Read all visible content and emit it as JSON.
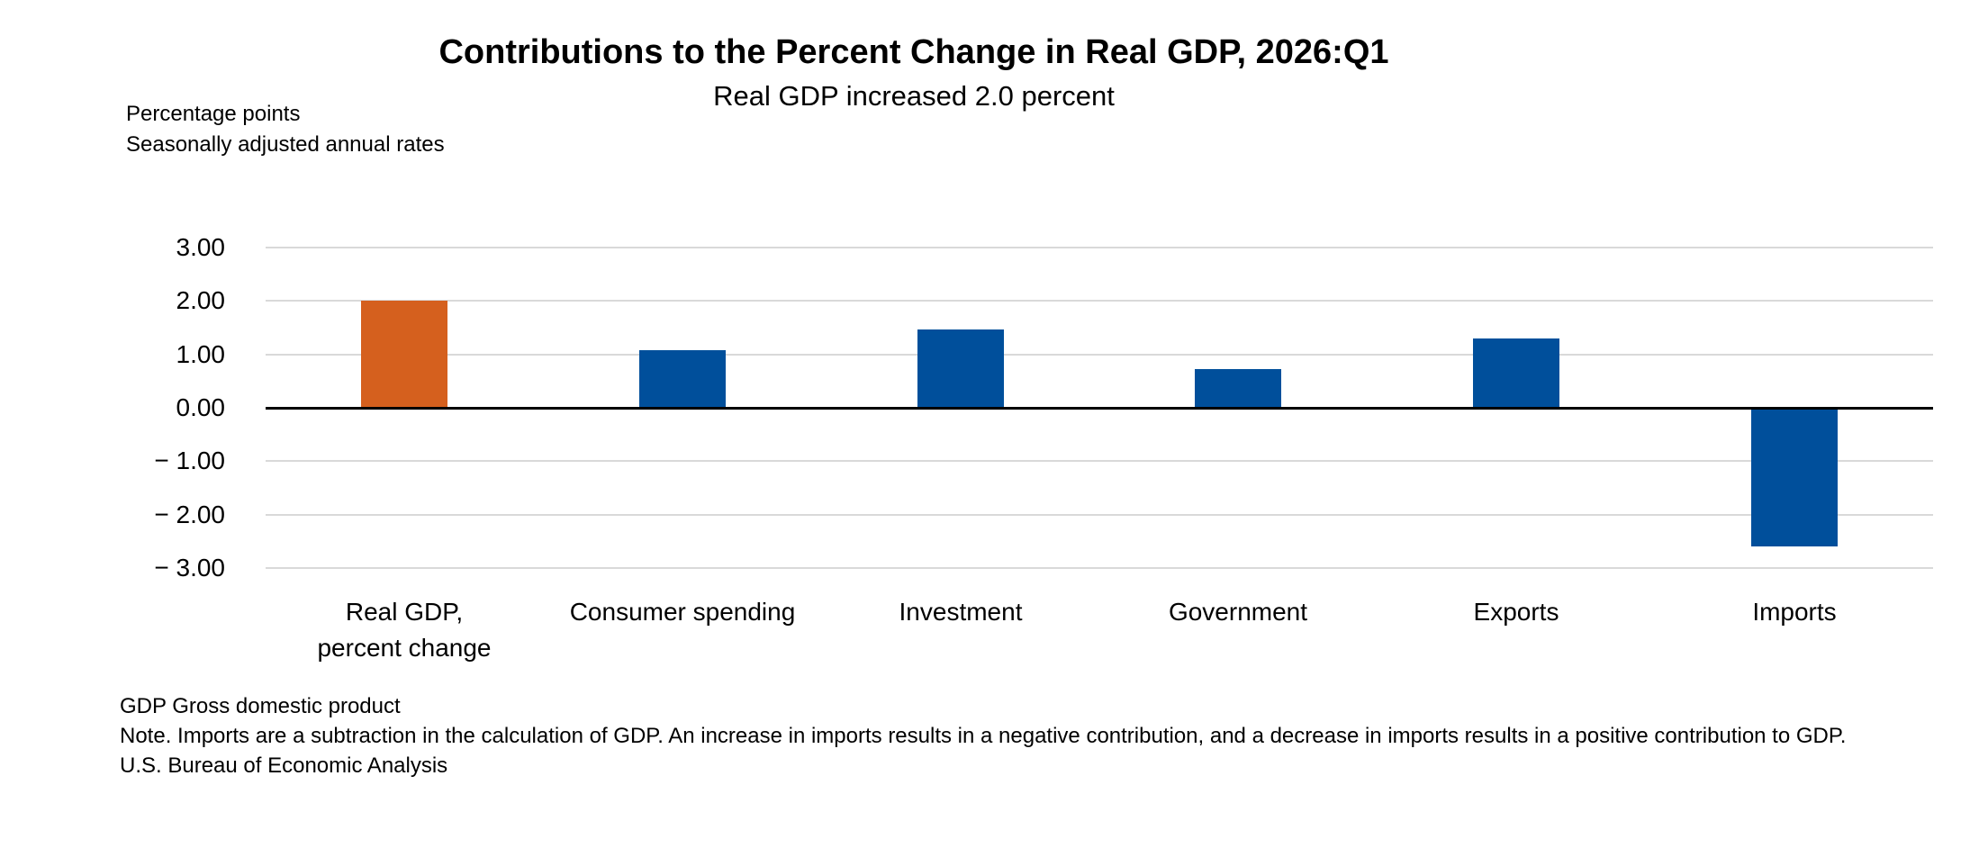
{
  "header": {
    "title": "Contributions to the Percent Change in Real GDP, 2026:Q1",
    "subtitle": "Real GDP increased 2.0 percent",
    "unit_note_line1": "Percentage points",
    "unit_note_line2": "Seasonally adjusted annual rates"
  },
  "chart_data": {
    "type": "bar",
    "title": "Contributions to the Percent Change in Real GDP, 2026:Q1",
    "subtitle": "Real GDP increased 2.0 percent",
    "xlabel": "",
    "ylabel": "Percentage points, seasonally adjusted annual rates",
    "categories": [
      "Real GDP,\npercent change",
      "Consumer spending",
      "Investment",
      "Government",
      "Exports",
      "Imports"
    ],
    "values": [
      2.0,
      1.07,
      1.47,
      0.72,
      1.3,
      -2.6
    ],
    "bar_colors": [
      "#d5601e",
      "#004f9b",
      "#004f9b",
      "#004f9b",
      "#004f9b",
      "#004f9b"
    ],
    "ylim": [
      -3.0,
      3.0
    ],
    "yticks": [
      {
        "value": 3,
        "label": "3.00"
      },
      {
        "value": 2,
        "label": "2.00"
      },
      {
        "value": 1,
        "label": "1.00"
      },
      {
        "value": 0,
        "label": "0.00"
      },
      {
        "value": -1,
        "label": "− 1.00"
      },
      {
        "value": -2,
        "label": "− 2.00"
      },
      {
        "value": -3,
        "label": "− 3.00"
      }
    ],
    "grid": "horizontal",
    "legend": "none",
    "zero_line_color": "#000000",
    "gridline_color": "#d9d9d9"
  },
  "footer": {
    "definition": "GDP Gross domestic product",
    "note": "Note. Imports are a subtraction in the calculation of GDP. An increase in imports results in a negative contribution, and a decrease in imports results in a positive contribution to GDP.",
    "source": "U.S. Bureau of Economic Analysis"
  }
}
